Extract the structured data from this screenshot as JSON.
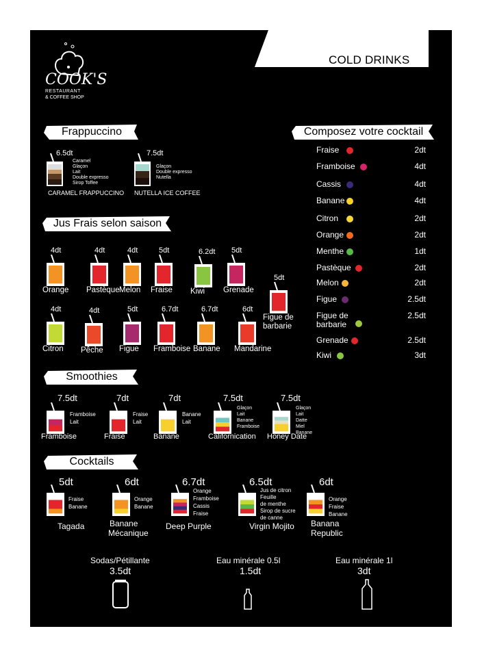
{
  "header": {
    "title": "COLD DRINKS"
  },
  "logo": {
    "name": "COOK'S",
    "sub1": "RESTAURANT",
    "sub2": "& COFFEE SHOP"
  },
  "frappuccino": {
    "heading": "Frappuccino",
    "items": [
      {
        "price": "6.5dt",
        "name": "CARAMEL FRAPPUCCINO",
        "ingredients": [
          "Caramel",
          "Glaçon",
          "Lait",
          "Double expresso",
          "Sirop Toffee"
        ]
      },
      {
        "price": "7.5dt",
        "name": "NUTELLA ICE COFFEE",
        "ingredients": [
          "Glaçon",
          "Double expresso",
          "Nutella"
        ]
      }
    ]
  },
  "jus": {
    "heading": "Jus Frais selon saison",
    "items": [
      {
        "price": "4dt",
        "name": "Orange",
        "color": "#f39323"
      },
      {
        "price": "4dt",
        "name": "Pastèque",
        "color": "#e3262b"
      },
      {
        "price": "4dt",
        "name": "Melon",
        "color": "#f39323"
      },
      {
        "price": "5dt",
        "name": "Fraise",
        "color": "#e3262b"
      },
      {
        "price": "6.2dt",
        "name": "Kiwi",
        "color": "#8ac541"
      },
      {
        "price": "5dt",
        "name": "Grenade",
        "color": "#c6265f"
      },
      {
        "price": "5dt",
        "name": "Figue de barbarie",
        "name1": "Figue de",
        "name2": "barbarie",
        "color": "#e3262b"
      },
      {
        "price": "4dt",
        "name": "Citron",
        "color": "#c2d936"
      },
      {
        "price": "4dt",
        "name": "Pêche",
        "color": "#ea4a2a"
      },
      {
        "price": "5dt",
        "name": "Figue",
        "color": "#a52b6c"
      },
      {
        "price": "6.7dt",
        "name": "Framboise",
        "color": "#e3262b"
      },
      {
        "price": "6.7dt",
        "name": "Banane",
        "color": "#f39323"
      },
      {
        "price": "6dt",
        "name": "Mandarine",
        "color": "#ea3a2a"
      }
    ]
  },
  "cocktail": {
    "heading": "Composez votre cocktail",
    "items": [
      {
        "name": "Fraise",
        "price": "2dt",
        "icon": "strawberry-icon",
        "color": "#e3262b"
      },
      {
        "name": "Framboise",
        "price": "4dt",
        "icon": "raspberry-icon",
        "color": "#d6246a"
      },
      {
        "name": "Cassis",
        "price": "4dt",
        "icon": "blackcurrant-icon",
        "color": "#3b2a7a"
      },
      {
        "name": "Banane",
        "price": "4dt",
        "icon": "banana-icon",
        "color": "#f6d02c"
      },
      {
        "name": "Citron",
        "price": "2dt",
        "icon": "lemon-icon",
        "color": "#f4d63a"
      },
      {
        "name": "Orange",
        "price": "2dt",
        "icon": "orange-icon",
        "color": "#f26b1d"
      },
      {
        "name": "Menthe",
        "price": "1dt",
        "icon": "mint-icon",
        "color": "#58b947"
      },
      {
        "name": "Pastèque",
        "price": "2dt",
        "icon": "watermelon-icon",
        "color": "#e3262b"
      },
      {
        "name": "Melon",
        "price": "2dt",
        "icon": "melon-icon",
        "color": "#f3b53b"
      },
      {
        "name": "Figue",
        "price": "2.5dt",
        "icon": "fig-icon",
        "color": "#6b2a6e"
      },
      {
        "name": "Figue de barbarie",
        "name1": "Figue de",
        "name2": "barbarie",
        "price": "2.5dt",
        "icon": "prickly-pear-icon",
        "color": "#9ac73b"
      },
      {
        "name": "Grenade",
        "price": "2.5dt",
        "icon": "pomegranate-icon",
        "color": "#e3262b"
      },
      {
        "name": "Kiwi",
        "price": "3dt",
        "icon": "kiwi-icon",
        "color": "#8ac541"
      }
    ]
  },
  "smoothies": {
    "heading": "Smoothies",
    "items": [
      {
        "price": "7.5dt",
        "name": "Framboise",
        "ingredients": [
          "Framboise",
          "Lait"
        ]
      },
      {
        "price": "7dt",
        "name": "Fraise",
        "ingredients": [
          "Fraise",
          "Lait"
        ]
      },
      {
        "price": "7dt",
        "name": "Banane",
        "ingredients": [
          "Banane",
          "Lait"
        ]
      },
      {
        "price": "7.5dt",
        "name": "Californication",
        "ingredients": [
          "Glaçon",
          "Lait",
          "Banane",
          "Framboise"
        ]
      },
      {
        "price": "7.5dt",
        "name": "Honey Date",
        "ingredients": [
          "Glaçon",
          "Lait",
          "Datte",
          "Miel",
          "Banane"
        ]
      }
    ]
  },
  "cocktails": {
    "heading": "Cocktails",
    "items": [
      {
        "price": "5dt",
        "name": "Tagada",
        "ingredients": [
          "Fraise",
          "Banane"
        ]
      },
      {
        "price": "6dt",
        "name": "Banane Mécanique",
        "name1": "Banane",
        "name2": "Mécanique",
        "ingredients": [
          "Orange",
          "Banane"
        ]
      },
      {
        "price": "6.7dt",
        "name": "Deep Purple",
        "ingredients": [
          "Orange",
          "Framboise",
          "Cassis",
          "Fraise"
        ]
      },
      {
        "price": "6.5dt",
        "name": "Virgin Mojito",
        "ingredients": [
          "Jus de citron",
          "Feuille",
          "de menthe",
          "Sirop de sucre",
          "de canne"
        ]
      },
      {
        "price": "6dt",
        "name": "Banana Republic",
        "name1": "Banana",
        "name2": "Republic",
        "ingredients": [
          "Orange",
          "Fraise",
          "Banane"
        ]
      }
    ]
  },
  "bottom": {
    "items": [
      {
        "name": "Sodas/Pétillante",
        "price": "3.5dt",
        "icon": "soda-can-icon"
      },
      {
        "name": "Eau minérale 0.5l",
        "price": "1.5dt",
        "icon": "small-bottle-icon"
      },
      {
        "name": "Eau minérale 1l",
        "price": "3dt",
        "icon": "large-bottle-icon"
      }
    ]
  }
}
